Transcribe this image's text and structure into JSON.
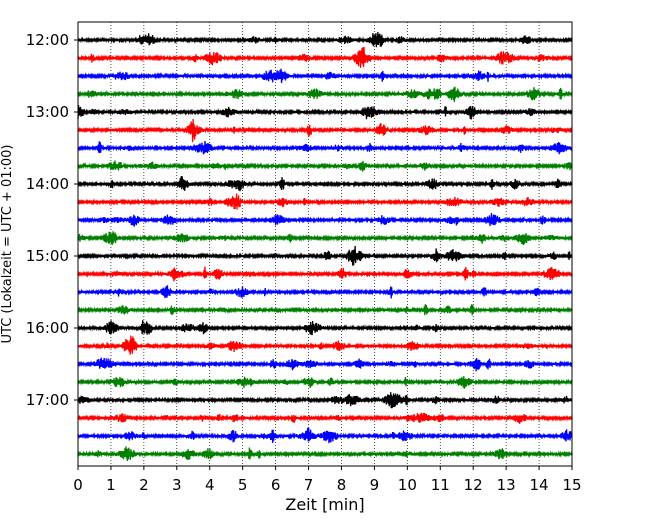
{
  "chart_data": {
    "type": "line",
    "title": "",
    "xlabel": "Zeit  [min]",
    "ylabel": "UTC (Lokalzeit = UTC + 01:00)",
    "xlim": [
      0,
      15
    ],
    "x_ticks": [
      "0",
      "1",
      "2",
      "3",
      "4",
      "5",
      "6",
      "7",
      "8",
      "9",
      "10",
      "11",
      "12",
      "13",
      "14",
      "15"
    ],
    "y_ticks": [
      "12:00",
      "13:00",
      "14:00",
      "15:00",
      "16:00",
      "17:00"
    ],
    "x_grid": "dotted vertical lines at each minute",
    "trace_interval_minutes": 15,
    "trace_colors": [
      "#000000",
      "#ff0000",
      "#0000ff",
      "#008000"
    ],
    "trace_start_times": [
      "12:00",
      "12:15",
      "12:30",
      "12:45",
      "13:00",
      "13:15",
      "13:30",
      "13:45",
      "14:00",
      "14:15",
      "14:30",
      "14:45",
      "15:00",
      "15:15",
      "15:30",
      "15:45",
      "16:00",
      "16:15",
      "16:30",
      "16:45",
      "17:00",
      "17:15",
      "17:30",
      "17:45"
    ]
  }
}
